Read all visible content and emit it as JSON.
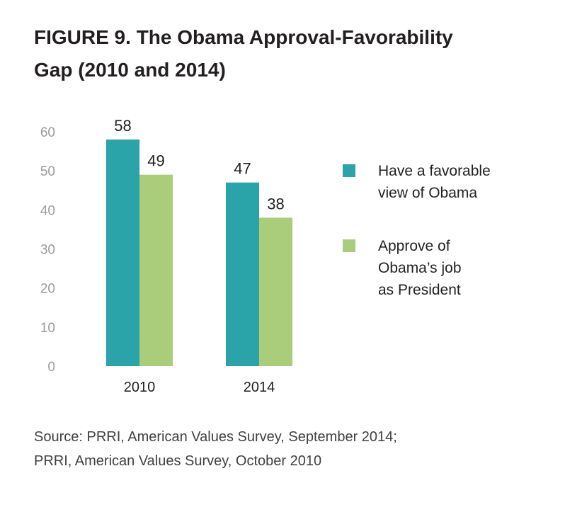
{
  "title": {
    "line1": "FIGURE 9.  The Obama Approval-Favorability",
    "line2": "Gap (2010 and 2014)"
  },
  "colors": {
    "favorable": "#2aa3a9",
    "approve": "#a9cd7a",
    "axis_ticks": "#9b9b9b",
    "text": "#231f20"
  },
  "chart_data": {
    "type": "bar",
    "title": "FIGURE 9.  The Obama Approval-Favorability Gap (2010 and 2014)",
    "categories": [
      "2010",
      "2014"
    ],
    "series": [
      {
        "name": "Have a favorable view of Obama",
        "values": [
          58,
          47
        ]
      },
      {
        "name": "Approve of Obama’s job as President",
        "values": [
          49,
          38
        ]
      }
    ],
    "yticks": [
      "0",
      "10",
      "20",
      "30",
      "40",
      "50",
      "60"
    ],
    "ylim": [
      0,
      60
    ],
    "grid": false,
    "legend_position": "right",
    "xlabel": "",
    "ylabel": ""
  },
  "legend": {
    "items": [
      {
        "lines": [
          "Have a favorable",
          "view of Obama"
        ]
      },
      {
        "lines": [
          "Approve of",
          "Obama’s job",
          "as President"
        ]
      }
    ]
  },
  "source": {
    "line1": "Source: PRRI, American Values Survey, September 2014;",
    "line2": "PRRI, American Values Survey, October 2010"
  }
}
